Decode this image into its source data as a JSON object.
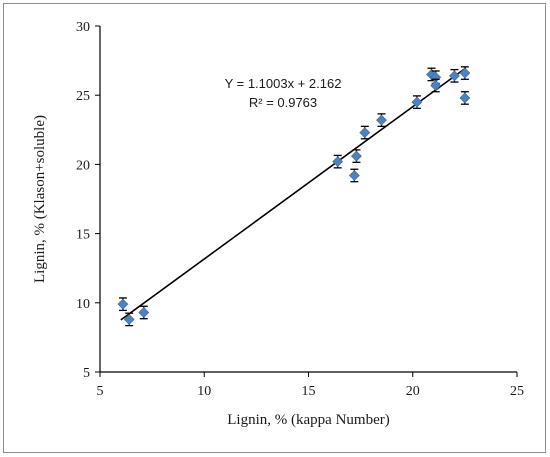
{
  "chart_data": {
    "type": "scatter",
    "title": "",
    "xlabel": "Lignin, % (kappa Number)",
    "ylabel": "Lignin, % (Klason+soluble)",
    "xlim": [
      5,
      25
    ],
    "ylim": [
      5,
      30
    ],
    "xticks": [
      "5",
      "10",
      "15",
      "20",
      "25"
    ],
    "yticks": [
      "5",
      "10",
      "15",
      "20",
      "25",
      "30"
    ],
    "grid": false,
    "legend": "none",
    "marker_color": "#4f81bd",
    "errorbar_color": "#000000",
    "trendline": {
      "slope": 1.1003,
      "intercept": 2.162,
      "equation_text": "Y = 1.1003x + 2.162",
      "r2_text": "R² = 0.9763"
    },
    "points": [
      {
        "x": 6.1,
        "y": 9.9,
        "err": 0.45
      },
      {
        "x": 6.4,
        "y": 8.8,
        "err": 0.45
      },
      {
        "x": 7.1,
        "y": 9.3,
        "err": 0.45
      },
      {
        "x": 16.4,
        "y": 20.2,
        "err": 0.45
      },
      {
        "x": 17.2,
        "y": 19.2,
        "err": 0.45
      },
      {
        "x": 17.3,
        "y": 20.6,
        "err": 0.45
      },
      {
        "x": 17.7,
        "y": 22.3,
        "err": 0.45
      },
      {
        "x": 18.5,
        "y": 23.2,
        "err": 0.45
      },
      {
        "x": 20.2,
        "y": 24.5,
        "err": 0.45
      },
      {
        "x": 20.9,
        "y": 26.5,
        "err": 0.45
      },
      {
        "x": 21.1,
        "y": 26.3,
        "err": 0.45
      },
      {
        "x": 21.1,
        "y": 25.7,
        "err": 0.45
      },
      {
        "x": 22.0,
        "y": 26.4,
        "err": 0.45
      },
      {
        "x": 22.5,
        "y": 26.6,
        "err": 0.45
      },
      {
        "x": 22.5,
        "y": 24.8,
        "err": 0.45
      }
    ]
  }
}
